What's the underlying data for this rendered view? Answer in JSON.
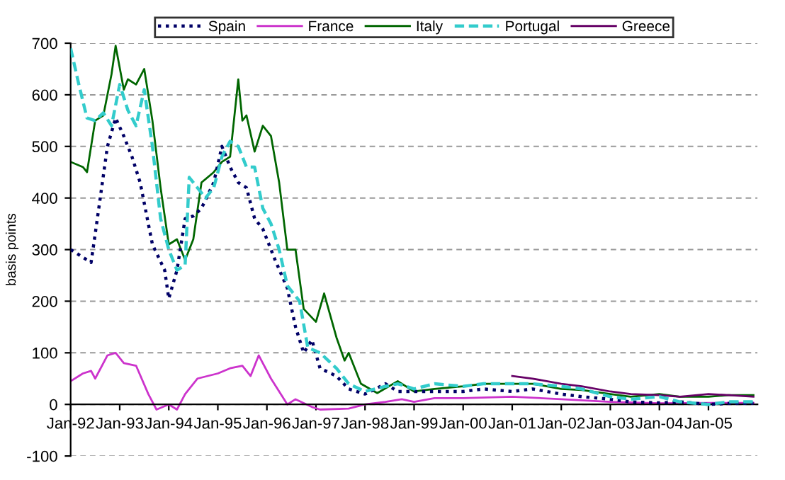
{
  "chart_data": {
    "type": "line",
    "ylabel": "basis points",
    "xlim": [
      "1992-01",
      "2006-01"
    ],
    "xticks": [
      {
        "value": "1992-01",
        "label": "Jan-92"
      },
      {
        "value": "1993-01",
        "label": "Jan-93"
      },
      {
        "value": "1994-01",
        "label": "Jan-94"
      },
      {
        "value": "1995-01",
        "label": "Jan-95"
      },
      {
        "value": "1996-01",
        "label": "Jan-96"
      },
      {
        "value": "1997-01",
        "label": "Jan-97"
      },
      {
        "value": "1998-01",
        "label": "Jan-98"
      },
      {
        "value": "1999-01",
        "label": "Jan-99"
      },
      {
        "value": "2000-01",
        "label": "Jan-00"
      },
      {
        "value": "2001-01",
        "label": "Jan-01"
      },
      {
        "value": "2002-01",
        "label": "Jan-02"
      },
      {
        "value": "2003-01",
        "label": "Jan-03"
      },
      {
        "value": "2004-01",
        "label": "Jan-04"
      },
      {
        "value": "2005-01",
        "label": "Jan-05"
      }
    ],
    "ylim": [
      -100,
      700
    ],
    "yticks": [
      -100,
      0,
      100,
      200,
      300,
      400,
      500,
      600,
      700
    ],
    "grid": "y",
    "legend": "top",
    "marker": "none",
    "series": [
      {
        "name": "Spain",
        "color": "#000066",
        "line_style": "dotted",
        "x": [
          "1992-01",
          "1992-04",
          "1992-06",
          "1992-07",
          "1992-10",
          "1992-12",
          "1993-02",
          "1993-04",
          "1993-06",
          "1993-09",
          "1993-12",
          "1994-01",
          "1994-03",
          "1994-05",
          "1994-07",
          "1994-09",
          "1994-12",
          "1995-02",
          "1995-04",
          "1995-06",
          "1995-08",
          "1995-10",
          "1995-12",
          "1996-03",
          "1996-06",
          "1996-08",
          "1996-10",
          "1996-12",
          "1997-02",
          "1997-06",
          "1997-09",
          "1998-01",
          "1998-06",
          "1998-09",
          "1999-01",
          "1999-06",
          "2000-01",
          "2000-06",
          "2001-01",
          "2001-06",
          "2002-01",
          "2002-06",
          "2003-01",
          "2003-06",
          "2004-01",
          "2004-06",
          "2005-01",
          "2005-06",
          "2005-12"
        ],
        "values": [
          300,
          285,
          275,
          330,
          500,
          555,
          520,
          480,
          430,
          310,
          260,
          205,
          260,
          360,
          365,
          380,
          430,
          500,
          460,
          430,
          420,
          360,
          340,
          280,
          225,
          150,
          100,
          125,
          70,
          55,
          30,
          20,
          40,
          25,
          25,
          25,
          25,
          30,
          25,
          30,
          20,
          15,
          10,
          5,
          3,
          5,
          0,
          2,
          2
        ]
      },
      {
        "name": "France",
        "color": "#cc33cc",
        "line_style": "solid",
        "x": [
          "1992-01",
          "1992-04",
          "1992-06",
          "1992-07",
          "1992-10",
          "1992-12",
          "1993-02",
          "1993-05",
          "1993-08",
          "1993-10",
          "1994-01",
          "1994-03",
          "1994-05",
          "1994-08",
          "1995-01",
          "1995-04",
          "1995-07",
          "1995-09",
          "1995-11",
          "1996-02",
          "1996-06",
          "1996-08",
          "1996-12",
          "1997-02",
          "1997-09",
          "1998-01",
          "1998-06",
          "1998-10",
          "1999-01",
          "1999-06",
          "2000-01",
          "2001-01",
          "2002-01",
          "2003-01",
          "2004-01",
          "2005-01",
          "2005-12"
        ],
        "values": [
          45,
          60,
          65,
          50,
          95,
          100,
          80,
          75,
          20,
          -10,
          0,
          -10,
          20,
          50,
          60,
          70,
          75,
          55,
          95,
          50,
          0,
          10,
          -5,
          -10,
          -8,
          0,
          5,
          10,
          5,
          12,
          12,
          15,
          10,
          5,
          2,
          3,
          3
        ]
      },
      {
        "name": "Italy",
        "color": "#006600",
        "line_style": "solid",
        "x": [
          "1992-01",
          "1992-04",
          "1992-05",
          "1992-07",
          "1992-09",
          "1992-11",
          "1992-12",
          "1993-02",
          "1993-03",
          "1993-05",
          "1993-07",
          "1993-09",
          "1993-11",
          "1994-01",
          "1994-03",
          "1994-05",
          "1994-07",
          "1994-09",
          "1994-12",
          "1995-02",
          "1995-04",
          "1995-06",
          "1995-07",
          "1995-08",
          "1995-10",
          "1995-12",
          "1996-02",
          "1996-04",
          "1996-06",
          "1996-08",
          "1996-10",
          "1997-01",
          "1997-03",
          "1997-06",
          "1997-08",
          "1997-09",
          "1997-12",
          "1998-04",
          "1998-09",
          "1999-01",
          "1999-06",
          "2000-01",
          "2000-06",
          "2001-01",
          "2001-06",
          "2002-01",
          "2002-06",
          "2003-01",
          "2003-06",
          "2004-01",
          "2004-06",
          "2005-01",
          "2005-06",
          "2005-12"
        ],
        "values": [
          470,
          460,
          450,
          550,
          560,
          640,
          695,
          610,
          630,
          620,
          650,
          550,
          420,
          310,
          320,
          280,
          320,
          430,
          450,
          470,
          480,
          630,
          550,
          560,
          490,
          540,
          520,
          430,
          300,
          300,
          185,
          160,
          215,
          130,
          85,
          100,
          40,
          22,
          45,
          25,
          30,
          35,
          40,
          40,
          40,
          30,
          28,
          20,
          15,
          20,
          15,
          15,
          18,
          18
        ]
      },
      {
        "name": "Portugal",
        "color": "#33cccc",
        "line_style": "dashed",
        "x": [
          "1992-01",
          "1992-03",
          "1992-05",
          "1992-07",
          "1992-09",
          "1992-11",
          "1993-01",
          "1993-03",
          "1993-05",
          "1993-07",
          "1993-09",
          "1993-11",
          "1994-01",
          "1994-03",
          "1994-05",
          "1994-06",
          "1994-08",
          "1994-10",
          "1994-12",
          "1995-02",
          "1995-04",
          "1995-06",
          "1995-08",
          "1995-10",
          "1995-12",
          "1996-02",
          "1996-04",
          "1996-06",
          "1996-09",
          "1996-11",
          "1997-02",
          "1997-06",
          "1997-09",
          "1998-01",
          "1998-06",
          "1998-09",
          "1999-01",
          "1999-06",
          "2000-01",
          "2000-06",
          "2001-01",
          "2001-06",
          "2002-01",
          "2002-06",
          "2003-01",
          "2003-06",
          "2004-01",
          "2004-06",
          "2005-01",
          "2005-06",
          "2005-12"
        ],
        "values": [
          690,
          620,
          555,
          550,
          565,
          540,
          620,
          570,
          540,
          610,
          500,
          360,
          300,
          260,
          270,
          440,
          420,
          400,
          420,
          480,
          510,
          500,
          460,
          460,
          380,
          350,
          300,
          230,
          200,
          110,
          100,
          70,
          40,
          25,
          35,
          40,
          30,
          40,
          35,
          40,
          40,
          40,
          35,
          30,
          15,
          10,
          15,
          5,
          0,
          5,
          5
        ]
      },
      {
        "name": "Greece",
        "color": "#660066",
        "line_style": "solid",
        "x": [
          "2001-01",
          "2001-06",
          "2002-01",
          "2002-06",
          "2003-01",
          "2003-06",
          "2004-01",
          "2004-06",
          "2005-01",
          "2005-06",
          "2005-12"
        ],
        "values": [
          55,
          50,
          40,
          35,
          25,
          20,
          18,
          15,
          20,
          18,
          15
        ]
      }
    ]
  }
}
